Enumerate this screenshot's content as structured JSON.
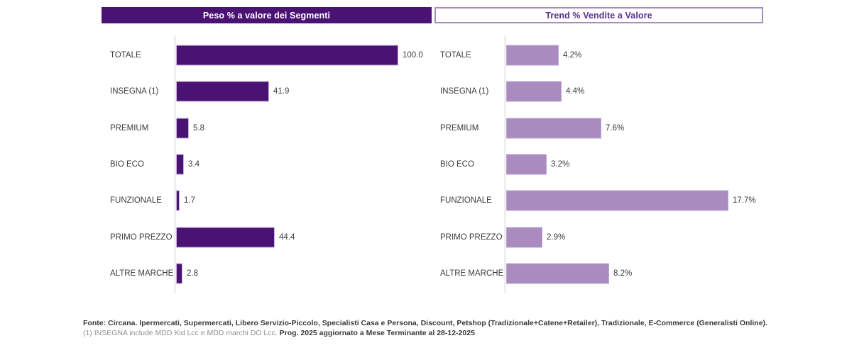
{
  "headers": {
    "left": "Peso % a valore dei Segmenti",
    "right": "Trend % Vendite a Valore"
  },
  "colors": {
    "dark_purple": "#4a1272",
    "light_purple": "#a98bc0",
    "header_right_text": "#5b2f8e",
    "header_right_border": "#a98bc0",
    "axis_line": "#efefef",
    "label_text": "#3c3c3c",
    "footnote_gray": "#8f8f8f"
  },
  "chart_data": [
    {
      "type": "bar",
      "orientation": "horizontal",
      "title": "Peso % a valore dei Segmenti",
      "categories": [
        "TOTALE",
        "INSEGNA (1)",
        "PREMIUM",
        "BIO ECO",
        "FUNZIONALE",
        "PRIMO PREZZO",
        "ALTRE MARCHE"
      ],
      "values": [
        100.0,
        41.9,
        5.8,
        3.4,
        1.7,
        44.4,
        2.8
      ],
      "value_labels": [
        "100.0",
        "41.9",
        "5.8",
        "3.4",
        "1.7",
        "44.4",
        "2.8"
      ],
      "xlim": [
        0,
        100
      ],
      "bar_color": "#4a1272",
      "grid": false,
      "legend": "none"
    },
    {
      "type": "bar",
      "orientation": "horizontal",
      "title": "Trend % Vendite a Valore",
      "categories": [
        "TOTALE",
        "INSEGNA (1)",
        "PREMIUM",
        "BIO ECO",
        "FUNZIONALE",
        "PRIMO PREZZO",
        "ALTRE MARCHE"
      ],
      "values": [
        4.2,
        4.4,
        7.6,
        3.2,
        17.7,
        2.9,
        8.2
      ],
      "value_labels": [
        "4.2%",
        "4.4%",
        "7.6%",
        "3.2%",
        "17.7%",
        "2.9%",
        "8.2%"
      ],
      "xlim": [
        0,
        17.7
      ],
      "bar_color": "#a98bc0",
      "grid": false,
      "legend": "none"
    }
  ],
  "footer": {
    "line1": "Fonte: Circana. Ipermercati, Supermercati, Libero Servizio-Piccolo, Specialisti Casa e Persona, Discount, Petshop (Tradizionale+Catene+Retailer), Tradizionale, E-Commerce (Generalisti Online).",
    "line2_gray": "(1) INSEGNA include MDD Kid Lcc e MDD marchi DO Lcc.",
    "line2_dark": "Prog. 2025 aggiornato a Mese Terminante al 28-12-2025"
  }
}
